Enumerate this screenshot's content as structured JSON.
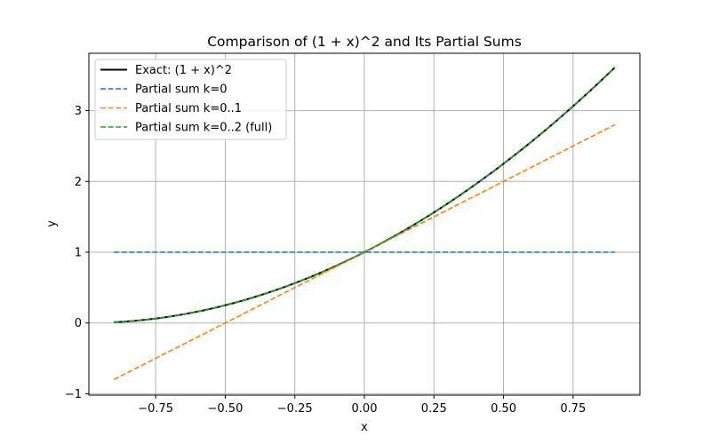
{
  "chart_data": {
    "type": "line",
    "title": "Comparison of (1 + x)^2 and Its Partial Sums",
    "xlabel": "x",
    "ylabel": "y",
    "xlim": [
      -0.99,
      0.99
    ],
    "ylim": [
      -1.02,
      3.81
    ],
    "x_ticks": [
      -0.75,
      -0.5,
      -0.25,
      0.0,
      0.25,
      0.5,
      0.75
    ],
    "x_tick_labels": [
      "−0.75",
      "−0.50",
      "−0.25",
      "0.00",
      "0.25",
      "0.50",
      "0.75"
    ],
    "y_ticks": [
      -1,
      0,
      1,
      2,
      3
    ],
    "y_tick_labels": [
      "−1",
      "0",
      "1",
      "2",
      "3"
    ],
    "grid": true,
    "legend_position": "upper-left",
    "x_range": [
      -0.9,
      0.9
    ],
    "series": [
      {
        "name": "Exact: (1 + x)^2",
        "color": "#000000",
        "dash": "solid",
        "formula": "(1+x)^2",
        "points": [
          [
            -0.9,
            0.01
          ],
          [
            0.0,
            1.0
          ],
          [
            0.9,
            3.61
          ]
        ]
      },
      {
        "name": "Partial sum k=0",
        "color": "#1f77b4",
        "dash": "dashed",
        "formula": "1",
        "points": [
          [
            -0.9,
            1.0
          ],
          [
            0.9,
            1.0
          ]
        ]
      },
      {
        "name": "Partial sum k=0..1",
        "color": "#ff7f0e",
        "dash": "dashed",
        "formula": "1+2x",
        "points": [
          [
            -0.9,
            -0.8
          ],
          [
            0.9,
            2.8
          ]
        ]
      },
      {
        "name": "Partial sum k=0..2 (full)",
        "color": "#2ca02c",
        "dash": "dashed",
        "formula": "1+2x+x^2",
        "points": [
          [
            -0.9,
            0.01
          ],
          [
            0.0,
            1.0
          ],
          [
            0.9,
            3.61
          ]
        ]
      }
    ]
  }
}
